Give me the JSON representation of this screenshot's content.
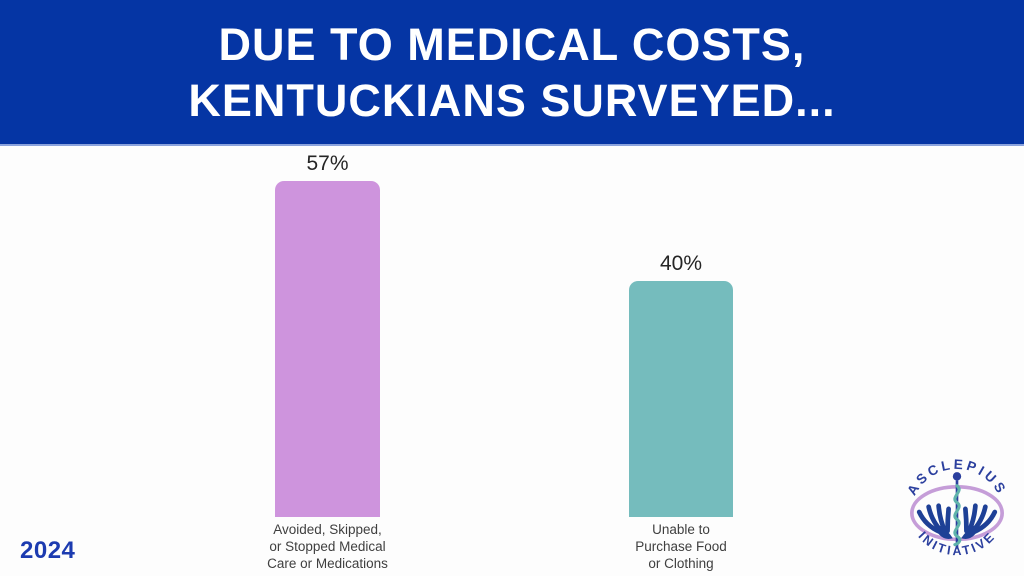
{
  "slide": {
    "title_line1": "DUE TO MEDICAL COSTS,",
    "title_line2": "KENTUCKIANS SURVEYED...",
    "year": "2024"
  },
  "chart_data": {
    "type": "bar",
    "title": "Due to medical costs, Kentuckians surveyed...",
    "categories": [
      "Avoided, Skipped, or Stopped Medical Care or Medications",
      "Unable to Purchase Food or Clothing"
    ],
    "category_lines": [
      [
        "Avoided, Skipped,",
        "or Stopped Medical",
        "Care or Medications"
      ],
      [
        "Unable to",
        "Purchase Food",
        "or Clothing"
      ]
    ],
    "values": [
      57,
      40
    ],
    "value_labels": [
      "57%",
      "40%"
    ],
    "colors": [
      "#ce94dd",
      "#75bcbd"
    ],
    "xlabel": "",
    "ylabel": "",
    "ylim": [
      0,
      60
    ],
    "grid": false,
    "legend": "none"
  },
  "logo": {
    "top_text": "ASCLEPIUS",
    "bottom_text": "INITIATIVE",
    "colors": {
      "text": "#2b3f9e",
      "ellipse": "#c59dd8",
      "hands": "#1e4096",
      "staff": "#2b3f9e",
      "snake": "#5fb3ab"
    }
  },
  "colors": {
    "banner_bg": "#0535a4",
    "banner_text": "#ffffff",
    "year_text": "#1c3bb0",
    "label_text": "#3f3f3f",
    "background": "#fdfdfd"
  }
}
